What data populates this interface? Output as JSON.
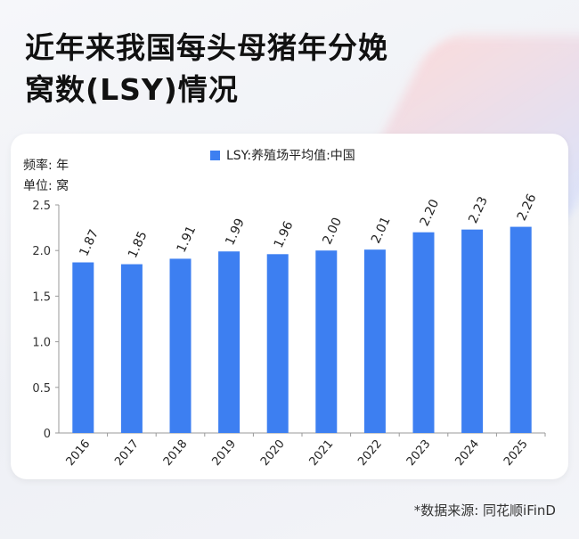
{
  "title_line1": "近年来我国每头母猪年分娩",
  "title_line2": "窝数(LSY)情况",
  "freq_label": "频率: 年",
  "unit_label": "单位: 窝",
  "source": "*数据来源:  同花顺iFinD",
  "chart_data": {
    "type": "bar",
    "categories": [
      "2016",
      "2017",
      "2018",
      "2019",
      "2020",
      "2021",
      "2022",
      "2023",
      "2024",
      "2025"
    ],
    "series": [
      {
        "name": "LSY:养殖场平均值:中国",
        "values": [
          1.87,
          1.85,
          1.91,
          1.99,
          1.96,
          2.0,
          2.01,
          2.2,
          2.23,
          2.26
        ],
        "labels": [
          "1.87",
          "1.85",
          "1.91",
          "1.99",
          "1.96",
          "2.00",
          "2.01",
          "2.20",
          "2.23",
          "2.26"
        ],
        "color": "#3d7ff1"
      }
    ],
    "yticks": [
      "0",
      "0.5",
      "1.0",
      "1.5",
      "2.0",
      "2.5"
    ],
    "ylim": [
      0,
      2.5
    ],
    "grid": false,
    "legend_position": "top"
  }
}
